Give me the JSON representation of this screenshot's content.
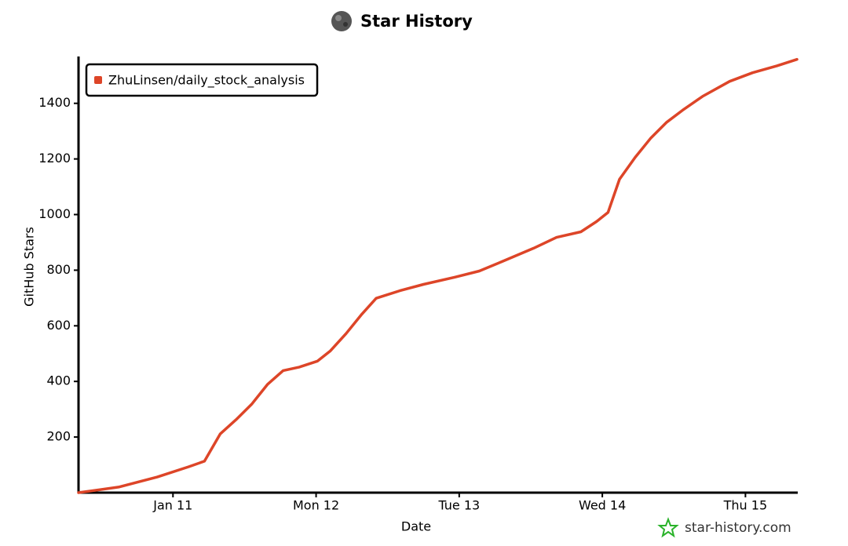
{
  "chart_data": {
    "type": "line",
    "title": "Star History",
    "xlabel": "Date",
    "ylabel": "GitHub Stars",
    "watermark": "star-history.com",
    "legend": "top-left",
    "x": [
      10.34,
      10.62,
      10.89,
      11.11,
      11.22,
      11.33,
      11.44,
      11.55,
      11.66,
      11.77,
      11.88,
      12.01,
      12.1,
      12.21,
      12.32,
      12.42,
      12.59,
      12.75,
      12.97,
      13.14,
      13.3,
      13.52,
      13.68,
      13.85,
      13.96,
      14.04,
      14.12,
      14.23,
      14.34,
      14.45,
      14.56,
      14.7,
      14.89,
      15.05,
      15.22,
      15.36
    ],
    "series": [
      {
        "name": "ZhuLinsen/daily_stock_analysis",
        "color": "#dd4528",
        "values": [
          0,
          20,
          56,
          93,
          113,
          211,
          262,
          318,
          389,
          439,
          451,
          473,
          510,
          572,
          642,
          699,
          727,
          749,
          775,
          797,
          831,
          879,
          918,
          938,
          975,
          1008,
          1127,
          1206,
          1276,
          1332,
          1375,
          1425,
          1479,
          1510,
          1535,
          1558
        ]
      }
    ],
    "xlim": [
      10.34,
      15.36
    ],
    "xticks": [
      {
        "value": 11,
        "label": "Jan 11"
      },
      {
        "value": 12,
        "label": "Mon 12"
      },
      {
        "value": 13,
        "label": "Tue 13"
      },
      {
        "value": 14,
        "label": "Wed 14"
      },
      {
        "value": 15,
        "label": "Thu 15"
      }
    ],
    "ylim": [
      0,
      1560
    ],
    "yticks": [
      200,
      400,
      600,
      800,
      1000,
      1200,
      1400
    ],
    "grid": false
  }
}
